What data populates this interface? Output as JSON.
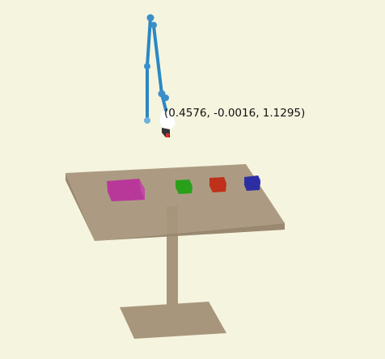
{
  "viewer": {
    "background_color": "#f5f4df",
    "end_effector_position": "(0.4576, -0.0016, 1.1295)"
  },
  "colors": {
    "table": "#a8967c",
    "table_dark": "#8f7d60",
    "arm": "#2b87c4",
    "arm_joint": "#3b8fc9",
    "gripper": "#ffffff",
    "gripper_tip": "#333333",
    "gripper_accent": "#d0342c"
  },
  "objects": [
    {
      "name": "magenta-block",
      "color": "#b8389a"
    },
    {
      "name": "green-block",
      "color": "#2aa01a"
    },
    {
      "name": "red-block",
      "color": "#c0301a"
    },
    {
      "name": "blue-block",
      "color": "#2d2ea3"
    }
  ]
}
